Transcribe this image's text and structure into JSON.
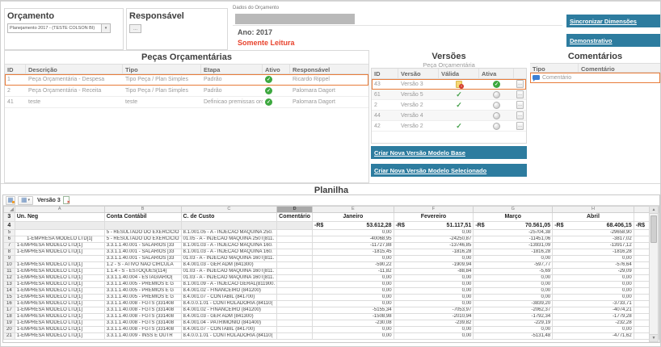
{
  "meta": {
    "colors": {
      "accent_blue": "#2d7c9f",
      "highlight_orange": "#e87c3a",
      "negative_red": "#e0351b",
      "active_green": "#3da83f",
      "readonly_red": "#e8432d"
    }
  },
  "orcamento": {
    "title": "Orçamento",
    "selected": "Planejamento 2017 - (TESTE COLSON BI)"
  },
  "responsavel": {
    "title": "Responsável",
    "button_label": "..."
  },
  "dados": {
    "label": "Dados do Orçamento",
    "ano": "Ano: 2017",
    "status": "Somente Leitura"
  },
  "actions": {
    "sincronizar": "Sincronizar Dimensões",
    "demonstrativo": "Demonstrativo"
  },
  "pecas": {
    "title": "Peças Orçamentárias",
    "headers": [
      "ID",
      "Descrição",
      "Tipo",
      "Etapa",
      "Ativo",
      "Responsável"
    ],
    "rows": [
      {
        "id": "1",
        "descricao": "Peça Orçamentária - Despesa",
        "tipo": "Tipo Peça / Plan Simples",
        "etapa": "Padrão",
        "ativo": true,
        "responsavel": "Ricardo Rippel",
        "selected": true
      },
      {
        "id": "2",
        "descricao": "Peça Orçamentária - Receita",
        "tipo": "Tipo Peça / Plan Simples",
        "etapa": "Padrão",
        "ativo": true,
        "responsavel": "Palomara Dagort",
        "selected": false
      },
      {
        "id": "41",
        "descricao": "teste",
        "tipo": "teste",
        "etapa": "Definicao premissas orc...",
        "ativo": true,
        "responsavel": "Palomara Dagort",
        "selected": false
      }
    ]
  },
  "versoes": {
    "title": "Versões",
    "subtitle": "Peça Orçamentária",
    "headers": [
      "ID",
      "Versão",
      "Válida",
      "Ativa",
      ""
    ],
    "rows": [
      {
        "id": "43",
        "versao": "Versão 3",
        "valida": "warning",
        "ativa": "on",
        "selected": true,
        "menu": "..."
      },
      {
        "id": "61",
        "versao": "Versão 5",
        "valida": "check",
        "ativa": "off",
        "selected": false,
        "menu": "..."
      },
      {
        "id": "2",
        "versao": "Versão 2",
        "valida": "check",
        "ativa": "off",
        "selected": false,
        "menu": "..."
      },
      {
        "id": "44",
        "versao": "Versão 4",
        "valida": "none",
        "ativa": "off",
        "selected": false,
        "menu": "..."
      },
      {
        "id": "42",
        "versao": "Versão 2",
        "valida": "check",
        "ativa": "off",
        "selected": false,
        "menu": "..."
      }
    ],
    "btn_base": "Criar Nova Versão Modelo Base",
    "btn_selecionado": "Criar Nova Versão Modelo Selecionado"
  },
  "comentarios": {
    "title": "Comentários",
    "headers": [
      "Tipo",
      "Comentário"
    ],
    "rows": [
      {
        "tipo": "Comentário",
        "comentario": "",
        "selected": true
      }
    ]
  },
  "planilha": {
    "title": "Planilha",
    "toolbar": {
      "versao": "Versão 3"
    },
    "sheet": {
      "col_letters": [
        "A",
        "B",
        "C",
        "D",
        "E",
        "F",
        "G",
        "H",
        ""
      ],
      "selected_col": "D",
      "header_row": {
        "num": "3",
        "a": "Un. Neg",
        "b": "Conta Contábil",
        "c": "C. de Custo",
        "d": "Comentário",
        "months": [
          "Janeiro",
          "Fevereiro",
          "Março",
          "Abril"
        ]
      },
      "totals_row": {
        "num": "4",
        "currency": "-R$",
        "values": [
          "53.612,28",
          "51.117,51",
          "70.561,05",
          "68.406,15"
        ],
        "extra_currency": "-R$"
      },
      "rows": [
        {
          "num": "5",
          "a": "",
          "b": "5 - RESULTADO DO EXERCICIO",
          "c": "8.1.001.05 - A - INJECAO MAQUINA 250.",
          "v": [
            "0,00",
            "0,00",
            "-25704,38",
            "-29658,90"
          ]
        },
        {
          "num": "6",
          "a": "1-EMPRESA MODELO LTD[1]",
          "a_center": true,
          "b": "5 - RESULTADO DO EXERCICIO",
          "c": "01.05 - A - INJECAO MAQUINA 250T[811.",
          "v": [
            "-40068,95",
            "-24250,87",
            "-11451,06",
            "-3817,02"
          ]
        },
        {
          "num": "7",
          "a": "1-EMPRESA MODELO LTD[1]",
          "b": "3.3.1.1.40.001 - SALARIOS [33",
          "c": "8.1.001.03 - A - INJECAO MAQUINA 160.",
          "v": [
            "-11727,88",
            "-13746,85",
            "-13931,09",
            "-13917,12"
          ]
        },
        {
          "num": "8",
          "a": "1-EMPRESA MODELO LTD[1]",
          "b": "3.3.1.1.40.001 - SALARIOS [33",
          "c": "8.1.001.03 - A - INJECAO MAQUINA 160.",
          "v": [
            "-1815,45",
            "-1816,28",
            "-1816,28",
            "-1816,28"
          ]
        },
        {
          "num": "9",
          "a": "",
          "b": "3.3.1.1.40.001 - SALARIOS [33",
          "c": "01.03 - A - INJECAO MAQUINA 160T[811.",
          "v": [
            "0,00",
            "0,00",
            "0,00",
            "0,00"
          ]
        },
        {
          "num": "10",
          "a": "1-EMPRESA MODELO LTD[1]",
          "b": "1.2 - S - ATIVO NAO CIRCULA",
          "c": "8.4.001.03 - GER ADM (841300)",
          "v": [
            "-590,22",
            "-1909,94",
            "-597,77",
            "-576,64"
          ]
        },
        {
          "num": "11",
          "a": "1-EMPRESA MODELO LTD[1]",
          "b": "1.1.4 - S - ESTOQUES(114)",
          "c": "01.03 - A - INJECAO MAQUINA 160T[811.",
          "v": [
            "-11,82",
            "-88,84",
            "-5,69",
            "-29,09"
          ]
        },
        {
          "num": "12",
          "a": "1-EMPRESA MODELO LTD[1]",
          "b": "3.3.1.1.40.004 - ESTAGIARIO(",
          "c": "01.03 - A - INJECAO MAQUINA 160T[811.",
          "v": [
            "0,00",
            "0,00",
            "0,00",
            "0,00"
          ]
        },
        {
          "num": "13",
          "a": "1-EMPRESA MODELO LTD[1]",
          "b": "3.3.1.1.40.005 - PREMIOS E G",
          "c": "8.1.001.09 - A - INJECAO GERAL(811900.",
          "v": [
            "0,00",
            "0,00",
            "0,00",
            "0,00"
          ]
        },
        {
          "num": "14",
          "a": "1-EMPRESA MODELO LTD[1]",
          "b": "3.3.1.1.40.005 - PREMIOS E G",
          "c": "8.4.001.02 - FINANCEIRO (841200)",
          "v": [
            "0,00",
            "0,00",
            "0,00",
            "0,00"
          ]
        },
        {
          "num": "15",
          "a": "1-EMPRESA MODELO LTD[1]",
          "b": "3.3.1.1.40.005 - PREMIOS E G",
          "c": "8.4.001.07 - CONTABIL (841700)",
          "v": [
            "0,00",
            "0,00",
            "0,00",
            "0,00"
          ]
        },
        {
          "num": "16",
          "a": "1-EMPRESA MODELO LTD[1]",
          "b": "3.3.1.1.40.008 - FGTS (331408",
          "c": "8.4.0.0.1.01 - CONTROLADORIA (84110(",
          "v": [
            "0,00",
            "0,00",
            "-3839,20",
            "-3733,71"
          ]
        },
        {
          "num": "17",
          "a": "1-EMPRESA MODELO LTD[1]",
          "b": "3.3.1.1.40.008 - FGTS (331408",
          "c": "8.4.001.02 - FINANCEIRO (841200)",
          "v": [
            "-5155,34",
            "-7053,97",
            "-2062,37",
            "-4074,21"
          ]
        },
        {
          "num": "18",
          "a": "1-EMPRESA MODELO LTD[1]",
          "b": "3.3.1.1.40.008 - FGTS (331408",
          "c": "8.4.001.03 - GER ADM (841300)",
          "v": [
            "-1508,98",
            "-2010,94",
            "-1792,34",
            "-1779,28"
          ]
        },
        {
          "num": "19",
          "a": "1-EMPRESA MODELO LTD[1]",
          "b": "3.3.1.1.40.008 - FGTS (331408",
          "c": "8.4.001.04 - PATRIMONIO (841400)",
          "v": [
            "-230,08",
            "-239,82",
            "-229,19",
            "-232,28"
          ]
        },
        {
          "num": "20",
          "a": "1-EMPRESA MODELO LTD[1]",
          "b": "3.3.1.1.40.008 - FGTS (331408",
          "c": "8.4.001.07 - CONTABIL (841700)",
          "v": [
            "0,00",
            "0,00",
            "0,00",
            "0,00"
          ]
        },
        {
          "num": "21",
          "a": "1-EMPRESA MODELO LTD[1]",
          "b": "3.3.1.1.40.009 - INSS E OUTR",
          "c": "8.4.0.0.1.01 - CONTROLADORIA (84110(",
          "v": [
            "0,00",
            "0,00",
            "-5131,48",
            "-4771,62"
          ]
        }
      ]
    }
  }
}
